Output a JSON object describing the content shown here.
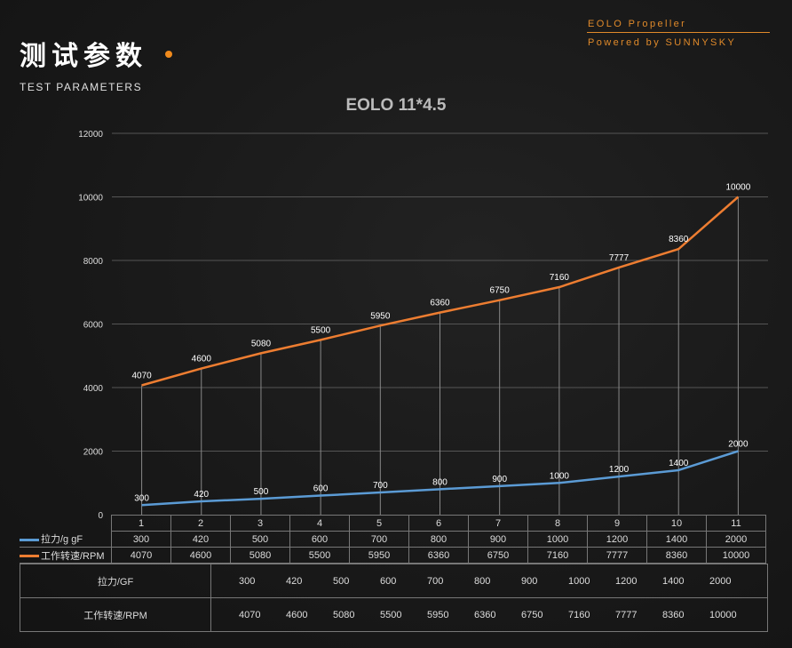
{
  "header": {
    "title_cn": "测试参数",
    "title_en": "TEST PARAMETERS",
    "brand_line1": "EOLO Propeller",
    "brand_line2": "Powered by SUNNYSKY"
  },
  "colors": {
    "accent": "#f08a1c",
    "thrust": "#5b9bd5",
    "rpm": "#ed7d31"
  },
  "chart_data": {
    "type": "line",
    "title": "EOLO 11*4.5",
    "categories": [
      "1",
      "2",
      "3",
      "4",
      "5",
      "6",
      "7",
      "8",
      "9",
      "10",
      "11"
    ],
    "ylim": [
      0,
      12000
    ],
    "yticks": [
      0,
      2000,
      4000,
      6000,
      8000,
      10000,
      12000
    ],
    "grid": true,
    "series": [
      {
        "name": "拉力/g gF",
        "values": [
          300,
          420,
          500,
          600,
          700,
          800,
          900,
          1000,
          1200,
          1400,
          2000
        ]
      },
      {
        "name": "工作转速/RPM",
        "values": [
          4070,
          4600,
          5080,
          5500,
          5950,
          6360,
          6750,
          7160,
          7777,
          8360,
          10000
        ]
      }
    ]
  },
  "table2": {
    "thrust_label": "拉力/GF",
    "rpm_label": "工作转速/RPM"
  }
}
